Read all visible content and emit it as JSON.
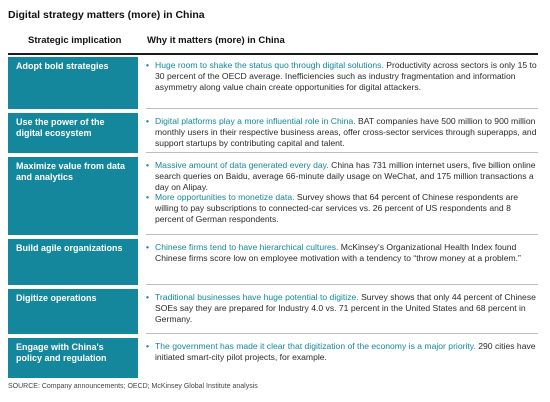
{
  "title": "Digital strategy matters (more) in China",
  "header": {
    "left": "Strategic implication",
    "right": "Why it matters (more) in China"
  },
  "rows": [
    {
      "label": "Adopt bold strategies",
      "bullets": [
        {
          "hl": "Huge room to shake the status quo through digital solutions.",
          "rest": " Productivity across sectors is only 15 to 30 percent of the OECD average. Inefficiencies such as industry fragmentation and information asymmetry along value chain create opportunities for digital attackers."
        }
      ]
    },
    {
      "label": "Use the power of the digital ecosystem",
      "bullets": [
        {
          "hl": "Digital platforms play a more influential role in China.",
          "rest": " BAT companies have 500 million to 900 million monthly users in their respective business areas, offer cross-sector services through superapps, and support startups by contributing capital and talent."
        }
      ]
    },
    {
      "label": "Maximize value from data and analytics",
      "bullets": [
        {
          "hl": "Massive amount of data generated every day.",
          "rest": " China has 731 million internet users, five billion online search queries on Baidu, average 66-minute daily usage on WeChat, and 175 million transactions a day on Alipay."
        },
        {
          "hl": "More opportunities to monetize data.",
          "rest": " Survey shows that 64 percent of Chinese respondents are willing to pay subscriptions to connected-car services vs. 26 percent of US respondents and 8 percent of German respondents."
        }
      ]
    },
    {
      "label": "Build agile organizations",
      "bullets": [
        {
          "hl": "Chinese firms tend to have hierarchical cultures.",
          "rest": " McKinsey's Organizational Health Index found Chinese firms score low on employee motivation with a tendency to “throw money at a problem.”"
        }
      ]
    },
    {
      "label": "Digitize operations",
      "bullets": [
        {
          "hl": "Traditional businesses have huge potential to digitize.",
          "rest": " Survey shows that only 44 percent of Chinese SOEs say they are prepared for Industry 4.0 vs. 71 percent in the United States and 68 percent in Germany."
        }
      ]
    },
    {
      "label": "Engage with China's policy and regulation",
      "bullets": [
        {
          "hl": "The government has made it clear that digitization of the economy is a major priority.",
          "rest": " 290 cities have initiated smart-city pilot projects, for example."
        }
      ]
    }
  ],
  "source": "SOURCE:  Company announcements; OECD; McKinsey Global Institute analysis",
  "colors": {
    "accent": "#14879c",
    "label_text": "#ffffff",
    "header_rule": "#1a1a1a",
    "row_rule": "#bdbdbd"
  }
}
